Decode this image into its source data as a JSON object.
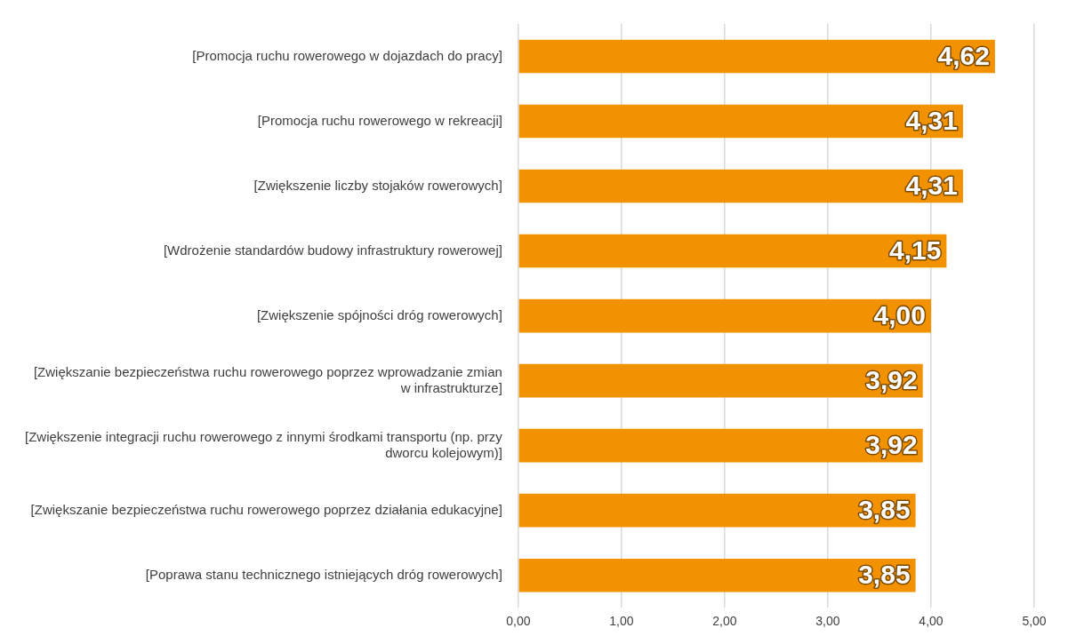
{
  "chart_data": {
    "type": "bar",
    "orientation": "horizontal",
    "categories": [
      "[Promocja ruchu rowerowego w dojazdach do pracy]",
      "[Promocja ruchu rowerowego w rekreacji]",
      "[Zwiększenie liczby stojaków rowerowych]",
      "[Wdrożenie standardów budowy infrastruktury rowerowej]",
      "[Zwiększenie spójności dróg rowerowych]",
      "[Zwiększanie bezpieczeństwa ruchu rowerowego poprzez wprowadzanie zmian w infrastrukturze]",
      "[Zwiększenie integracji ruchu rowerowego z innymi środkami transportu (np. przy dworcu kolejowym)]",
      "[Zwiększanie bezpieczeństwa ruchu rowerowego poprzez działania edukacyjne]",
      "[Poprawa stanu technicznego istniejących dróg rowerowych]"
    ],
    "values": [
      4.62,
      4.31,
      4.31,
      4.15,
      4.0,
      3.92,
      3.92,
      3.85,
      3.85
    ],
    "value_labels": [
      "4,62",
      "4,31",
      "4,31",
      "4,15",
      "4,00",
      "3,92",
      "3,92",
      "3,85",
      "3,85"
    ],
    "color": "#f39200",
    "xlim": [
      0,
      5
    ],
    "xticks": [
      {
        "value": 0,
        "label": "0,00"
      },
      {
        "value": 1,
        "label": "1,00"
      },
      {
        "value": 2,
        "label": "2,00"
      },
      {
        "value": 3,
        "label": "3,00"
      },
      {
        "value": 4,
        "label": "4,00"
      },
      {
        "value": 5,
        "label": "5,00"
      }
    ],
    "grid": "x"
  }
}
